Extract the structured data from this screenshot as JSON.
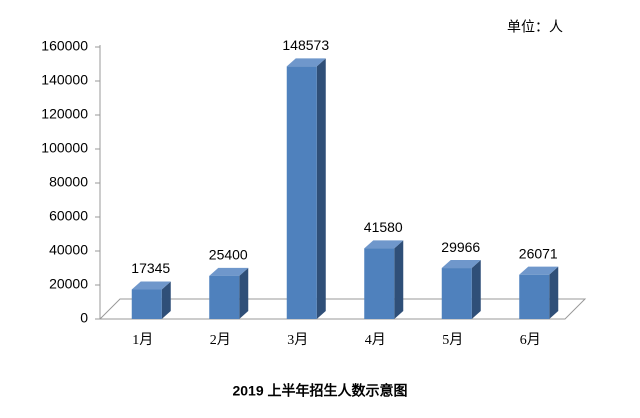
{
  "chart_data": {
    "type": "bar3d",
    "title": "2019 上半年招生人数示意图",
    "unit_label": "单位：人",
    "categories": [
      "1月",
      "2月",
      "3月",
      "4月",
      "5月",
      "6月"
    ],
    "values": [
      17345,
      25400,
      148573,
      41580,
      29966,
      26071
    ],
    "color": "#4f81bd",
    "ylim": [
      0,
      160000
    ],
    "yticks": [
      0,
      20000,
      40000,
      60000,
      80000,
      100000,
      120000,
      140000,
      160000
    ],
    "grid": false
  }
}
